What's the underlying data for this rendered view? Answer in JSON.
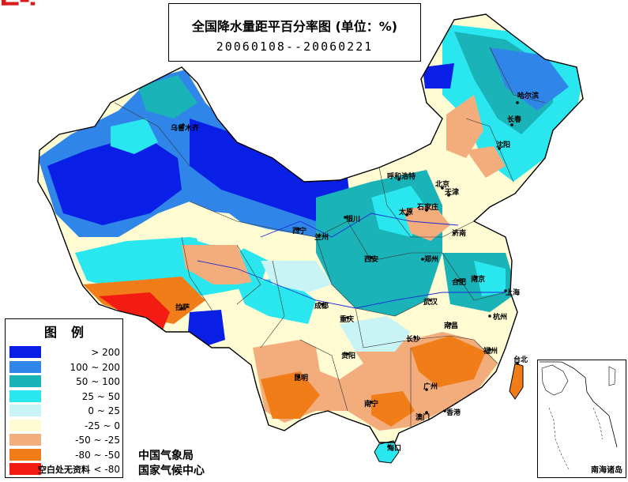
{
  "header_mark": "█▄▄▄ ▀▀ ▄",
  "title": {
    "main": "全国降水量距平百分率图 (单位：%)",
    "period": "20060108--20060221"
  },
  "legend": {
    "title": "图例",
    "items": [
      {
        "label": "> 200",
        "color": "#0a1fe6"
      },
      {
        "label": "100 ~ 200",
        "color": "#2f86e8"
      },
      {
        "label": "50 ~ 100",
        "color": "#19b3b8"
      },
      {
        "label": "25 ~ 50",
        "color": "#2ae6ee"
      },
      {
        "label": "0 ~ 25",
        "color": "#c8f4f6"
      },
      {
        "label": "-25 ~ 0",
        "color": "#fffbd2"
      },
      {
        "label": "-50 ~ -25",
        "color": "#f3ad7c"
      },
      {
        "label": "-80 ~ -50",
        "color": "#f07d18"
      },
      {
        "label": "< -80",
        "color": "#f21c12"
      }
    ],
    "note": "空白处无资料"
  },
  "agency": {
    "line1": "中国气象局",
    "line2": "国家气候中心"
  },
  "inset": {
    "label": "南海诸岛"
  },
  "cities": [
    "乌鲁木齐",
    "哈尔滨",
    "长春",
    "沈阳",
    "呼和浩特",
    "北京",
    "天津",
    "太原",
    "石家庄",
    "济南",
    "银川",
    "西宁",
    "兰州",
    "郑州",
    "西安",
    "合肥",
    "南京",
    "上海",
    "武汉",
    "成都",
    "重庆",
    "拉萨",
    "长沙",
    "南昌",
    "杭州",
    "福州",
    "贵阳",
    "昆明",
    "南宁",
    "广州",
    "台北",
    "香港",
    "澳门",
    "海口"
  ]
}
